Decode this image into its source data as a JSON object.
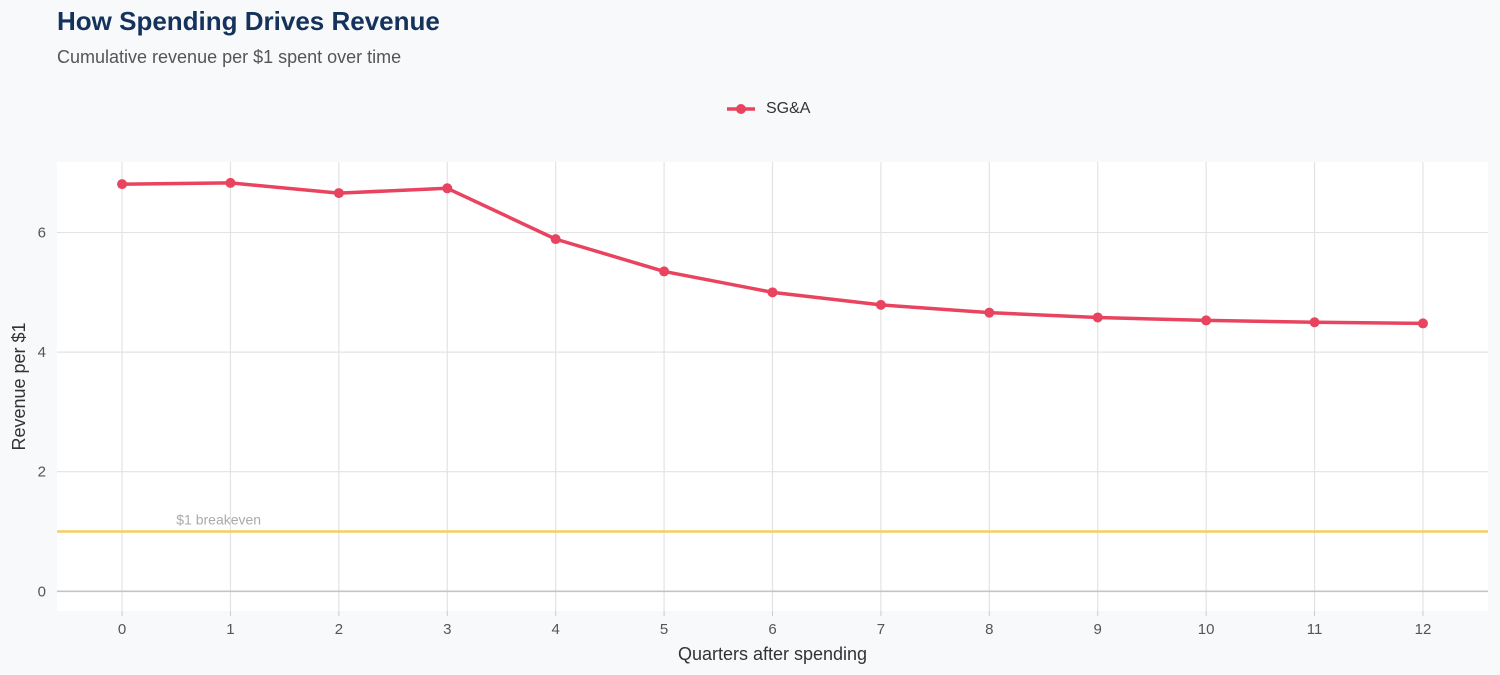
{
  "chart_data": {
    "type": "line",
    "title": "How Spending Drives Revenue",
    "subtitle": "Cumulative revenue per $1 spent over time",
    "xlabel": "Quarters after spending",
    "ylabel": "Revenue per $1",
    "x": [
      0,
      1,
      2,
      3,
      4,
      5,
      6,
      7,
      8,
      9,
      10,
      11,
      12
    ],
    "series": [
      {
        "name": "SG&A",
        "color": "#e8445f",
        "values": [
          6.81,
          6.83,
          6.66,
          6.74,
          5.89,
          5.35,
          5.0,
          4.79,
          4.66,
          4.58,
          4.53,
          4.5,
          4.48
        ]
      }
    ],
    "xticks": [
      "0",
      "1",
      "2",
      "3",
      "4",
      "5",
      "6",
      "7",
      "8",
      "9",
      "10",
      "11",
      "12"
    ],
    "yticks": [
      "0",
      "2",
      "4",
      "6"
    ],
    "ylim": [
      -0.33,
      7.18
    ],
    "xlim": [
      -0.6,
      12.6
    ],
    "grid": true,
    "legend_position": "top",
    "reference_line": {
      "y": 1,
      "label": "$1 breakeven",
      "color": "#f7cd5e"
    }
  }
}
